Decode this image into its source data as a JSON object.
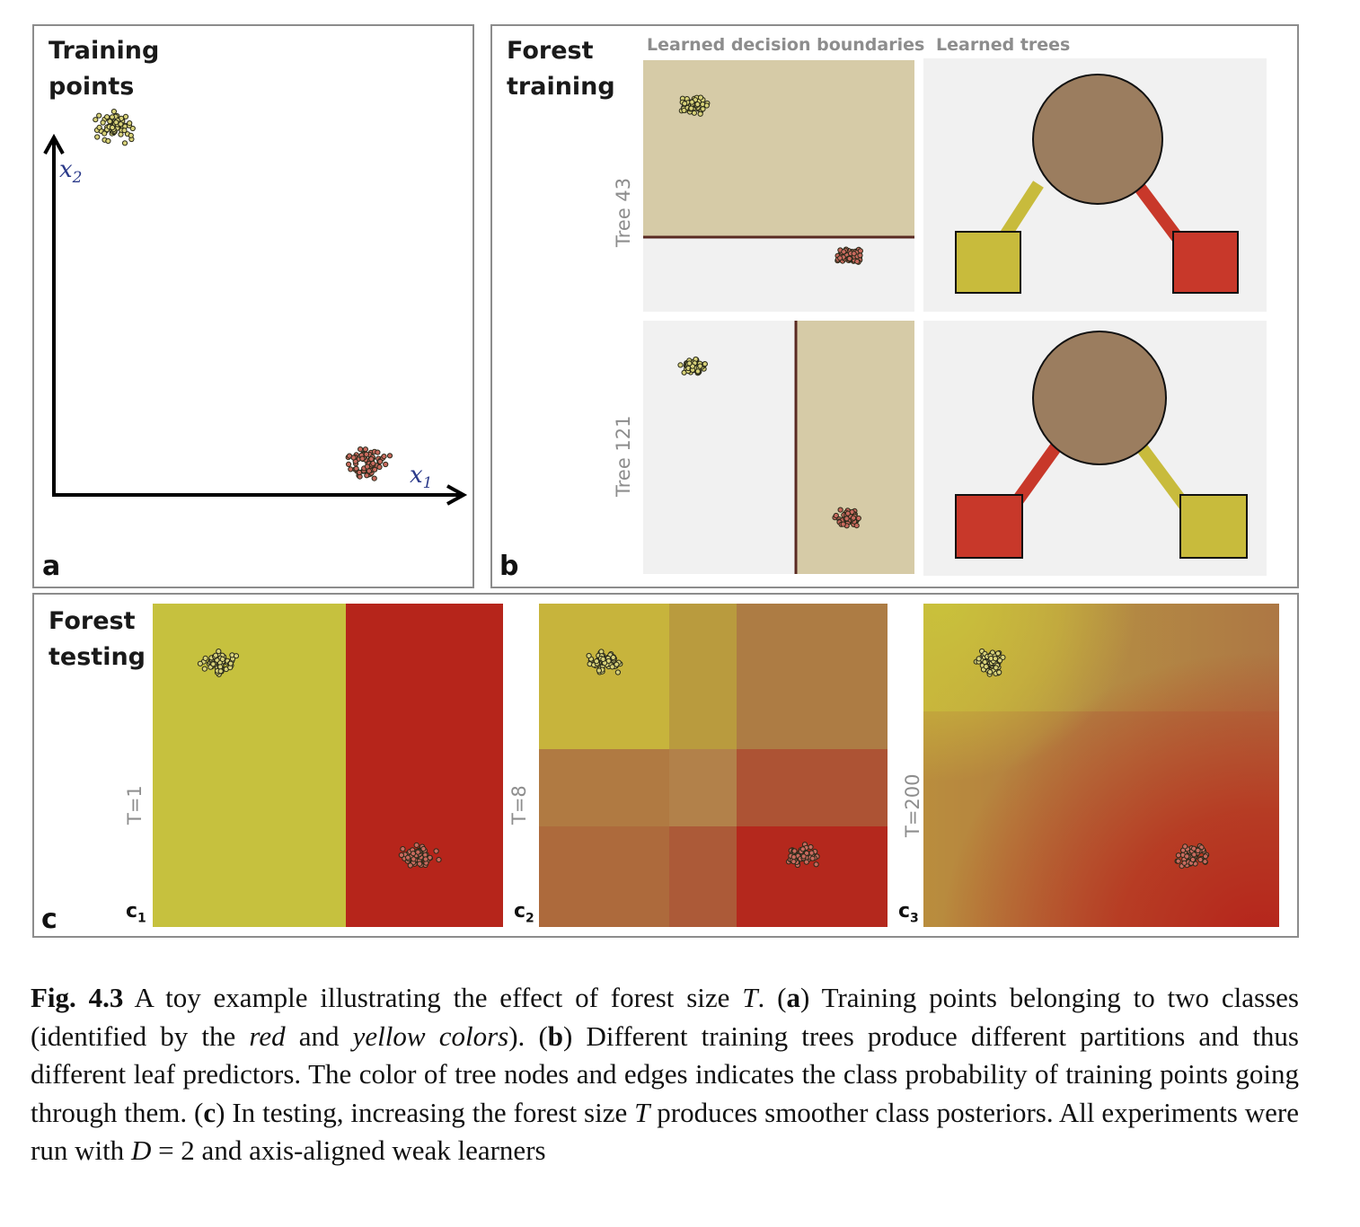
{
  "panel_a": {
    "title": "Training\npoints",
    "letter": "a",
    "x_axis_label": "x1",
    "y_axis_label": "x2"
  },
  "panel_b": {
    "title": "Forest\ntraining",
    "letter": "b",
    "col_head_boundaries": "Learned decision boundaries",
    "col_head_trees": "Learned trees",
    "rows": [
      {
        "label": "Tree 43",
        "split": "horizontal",
        "left_leaf_color": "#c8bb3c",
        "right_leaf_color": "#c8382a"
      },
      {
        "label": "Tree 121",
        "split": "vertical",
        "left_leaf_color": "#c8382a",
        "right_leaf_color": "#c8bb3c"
      }
    ]
  },
  "panel_c": {
    "title": "Forest\ntesting",
    "letter": "c",
    "subpanels": [
      {
        "sub": "1",
        "label": "T=1"
      },
      {
        "sub": "2",
        "label": "T=8"
      },
      {
        "sub": "3",
        "label": "T=200"
      }
    ]
  },
  "colors": {
    "yellow_class": "#c6c13e",
    "red_class": "#b6251b",
    "node": "#9b7d5f",
    "beige_region": "#d6cba7",
    "light_bg": "#f1f1f1"
  },
  "caption": {
    "fig_label": "Fig. 4.3",
    "t1": " A toy example illustrating the effect of forest size ",
    "T": "T",
    "t2": ". (",
    "a": "a",
    "t3": ") Training points belonging to two classes (identified by the ",
    "red": "red",
    "t4": " and ",
    "yellow": "yellow colors",
    "t5": "). (",
    "b": "b",
    "t6": ") Different training trees produce different partitions and thus different leaf predictors. The color of tree nodes and edges indicates the class probability of training points going through them. (",
    "c": "c",
    "t7": ") In testing, increasing the forest size ",
    "T2": "T",
    "t8": " produces smoother class posteriors. All experiments were run with ",
    "D": "D",
    "t9": " = 2 and axis-aligned weak learners"
  }
}
